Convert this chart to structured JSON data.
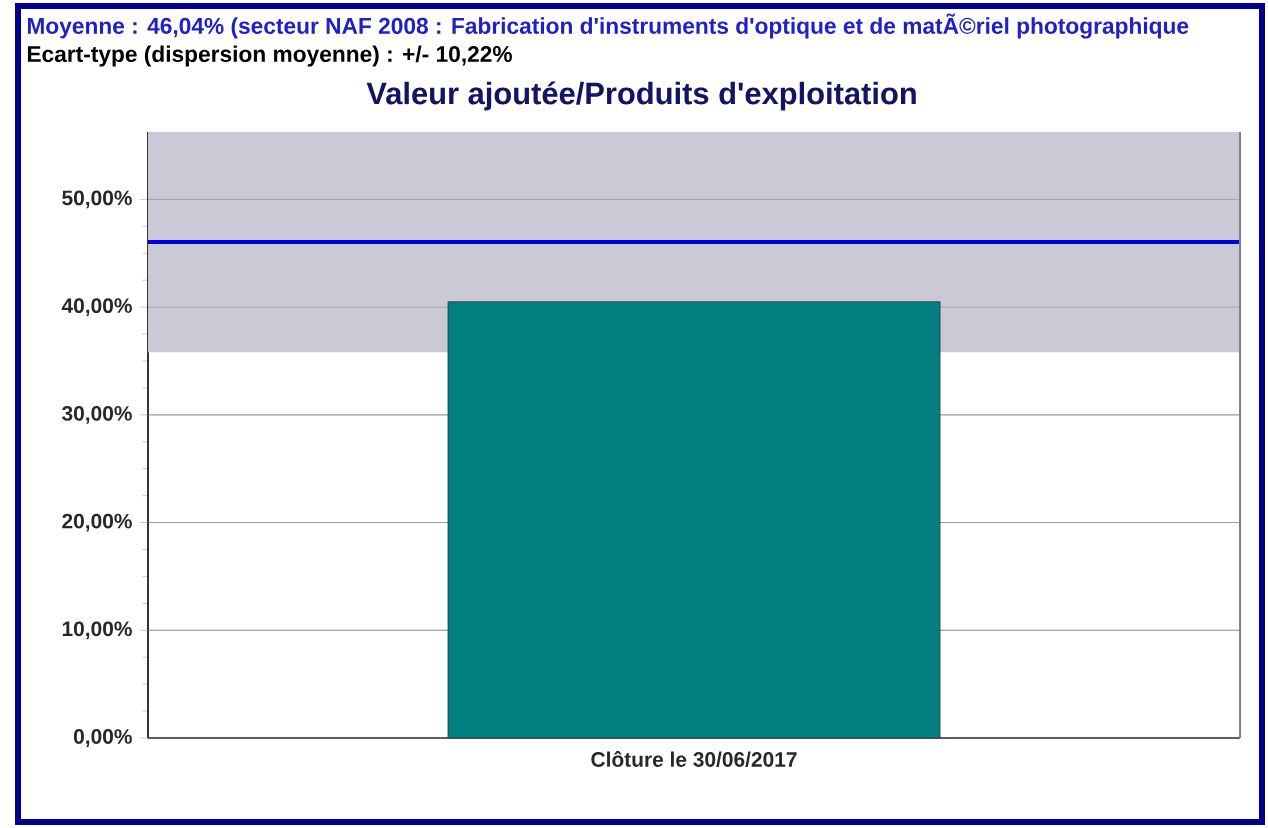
{
  "chart_data": {
    "type": "bar",
    "title": "Valeur ajoutée/Produits d'exploitation",
    "annotations": [
      "Moyenne : 46,04% (secteur NAF 2008 : Fabrication d'instruments d'optique et de matÃ©riel photographique",
      "Ecart-type (dispersion moyenne) : +/- 10,22%"
    ],
    "categories": [
      "Clôture le 30/06/2017"
    ],
    "values": [
      40.5
    ],
    "color": "#008080",
    "ylim": [
      0,
      56.26
    ],
    "yticks": [
      {
        "value": 0,
        "label": "0,00%"
      },
      {
        "value": 10,
        "label": "10,00%"
      },
      {
        "value": 20,
        "label": "20,00%"
      },
      {
        "value": 30,
        "label": "30,00%"
      },
      {
        "value": 40,
        "label": "40,00%"
      },
      {
        "value": 50,
        "label": "50,00%"
      }
    ],
    "grid": "y",
    "ref_lines": [
      {
        "axis": "y",
        "value": 46.04,
        "color": "#0000dd"
      }
    ],
    "bands": [
      {
        "axis": "y",
        "from": 35.82,
        "to": 56.26,
        "color": "#cacad7"
      }
    ]
  }
}
